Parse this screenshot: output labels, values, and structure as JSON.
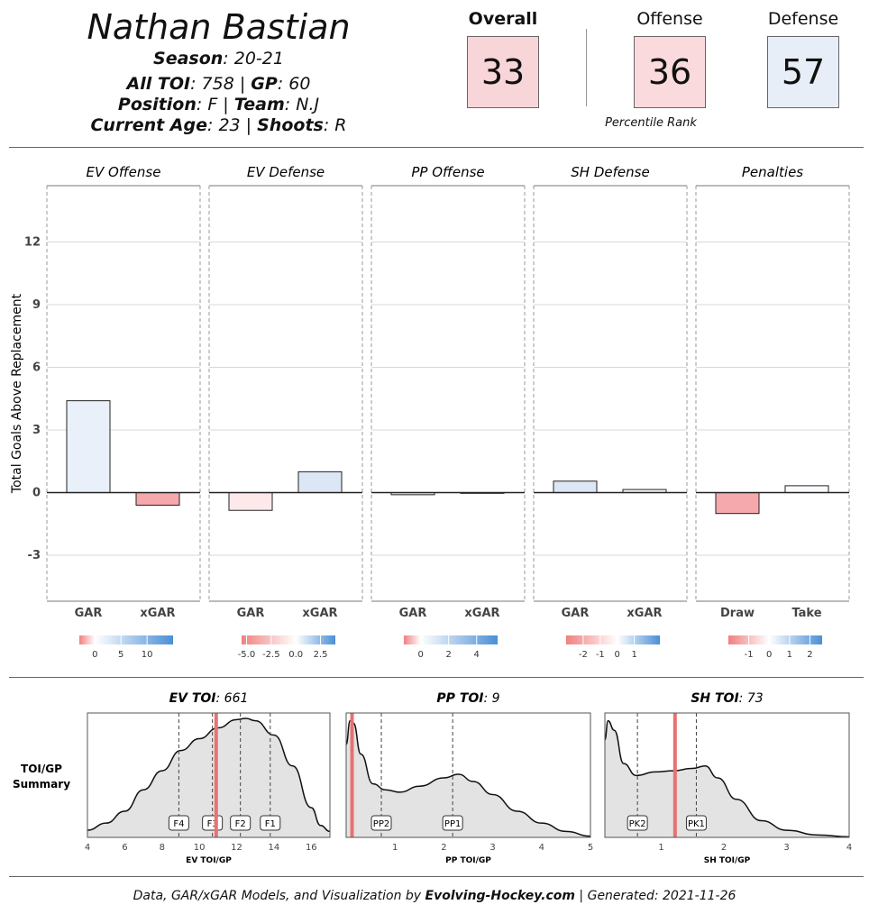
{
  "player": {
    "name": "Nathan Bastian",
    "season_label": "Season",
    "season": "20-21",
    "toi_label": "All TOI",
    "toi": "758",
    "gp_label": "GP",
    "gp": "60",
    "position_label": "Position",
    "position": "F",
    "team_label": "Team",
    "team": "N.J",
    "age_label": "Current Age",
    "age": "23",
    "shoots_label": "Shoots",
    "shoots": "R"
  },
  "scores": {
    "overall_label": "Overall",
    "overall": "33",
    "overall_color": "#f8d5d8",
    "offense_label": "Offense",
    "offense": "36",
    "offense_color": "#fadadd",
    "defense_label": "Defense",
    "defense": "57",
    "defense_color": "#e8eef8",
    "percentile_label": "Percentile Rank"
  },
  "chart_data": [
    {
      "type": "bar",
      "ylabel": "Total Goals Above Replacement",
      "ylim": [
        -5.2,
        14.7
      ],
      "yticks": [
        -3,
        0,
        3,
        6,
        9,
        12
      ],
      "grid": true,
      "panels": [
        {
          "title": "EV Offense",
          "categories": [
            "GAR",
            "xGAR"
          ],
          "values": [
            4.4,
            -0.6
          ],
          "colors": [
            "#e9f0fa",
            "#f5a9ad"
          ],
          "scale": {
            "min": -3,
            "max": 15,
            "ticks": [
              0,
              5,
              10
            ]
          }
        },
        {
          "title": "EV Defense",
          "categories": [
            "GAR",
            "xGAR"
          ],
          "values": [
            -0.85,
            1.0
          ],
          "colors": [
            "#fde8ea",
            "#dce6f5"
          ],
          "scale": {
            "min": -5.5,
            "max": 4,
            "ticks": [
              "-5.0",
              "-2.5",
              "0.0",
              "2.5"
            ],
            "tickvals": [
              -5,
              -2.5,
              0,
              2.5
            ]
          }
        },
        {
          "title": "PP Offense",
          "categories": [
            "GAR",
            "xGAR"
          ],
          "values": [
            -0.1,
            -0.03
          ],
          "colors": [
            "#fdf3f3",
            "#f7f7f7"
          ],
          "scale": {
            "min": -1.2,
            "max": 5.5,
            "ticks": [
              0,
              2,
              4
            ]
          }
        },
        {
          "title": "SH Defense",
          "categories": [
            "GAR",
            "xGAR"
          ],
          "values": [
            0.55,
            0.15
          ],
          "colors": [
            "#dce6f5",
            "#f4f7fc"
          ],
          "scale": {
            "min": -3,
            "max": 2.5,
            "ticks": [
              -2,
              -1,
              0,
              1
            ]
          }
        },
        {
          "title": "Penalties",
          "categories": [
            "Draw",
            "Take"
          ],
          "values": [
            -1.0,
            0.33
          ],
          "colors": [
            "#f5a9ad",
            "#fafbfe"
          ],
          "scale": {
            "min": -2,
            "max": 2.6,
            "ticks": [
              -1,
              0,
              1,
              2
            ]
          }
        }
      ]
    },
    {
      "type": "area",
      "summary_label": "TOI/GP Summary",
      "panels": [
        {
          "title_label": "EV TOI",
          "title_value": "661",
          "xlabel": "EV TOI/GP",
          "xlim": [
            4,
            17
          ],
          "xticks": [
            4,
            6,
            8,
            10,
            12,
            14,
            16
          ],
          "player_value": 10.9,
          "markers": [
            {
              "label": "F4",
              "x": 8.9
            },
            {
              "label": "F3",
              "x": 10.7
            },
            {
              "label": "F2",
              "x": 12.2
            },
            {
              "label": "F1",
              "x": 13.8
            }
          ],
          "density": [
            [
              4,
              0.06
            ],
            [
              5,
              0.12
            ],
            [
              6,
              0.22
            ],
            [
              7,
              0.4
            ],
            [
              8,
              0.56
            ],
            [
              9,
              0.73
            ],
            [
              10,
              0.83
            ],
            [
              11,
              0.92
            ],
            [
              12,
              0.99
            ],
            [
              12.5,
              1.0
            ],
            [
              13,
              0.98
            ],
            [
              14,
              0.86
            ],
            [
              15,
              0.6
            ],
            [
              16,
              0.25
            ],
            [
              16.5,
              0.1
            ],
            [
              17,
              0.05
            ]
          ]
        },
        {
          "title_label": "PP TOI",
          "title_value": "9",
          "xlabel": "PP TOI/GP",
          "xlim": [
            0,
            5
          ],
          "xticks": [
            1,
            2,
            3,
            4,
            5
          ],
          "player_value": 0.12,
          "markers": [
            {
              "label": "PP2",
              "x": 0.72
            },
            {
              "label": "PP1",
              "x": 2.18
            }
          ],
          "density": [
            [
              0,
              0.78
            ],
            [
              0.08,
              0.98
            ],
            [
              0.15,
              0.96
            ],
            [
              0.3,
              0.7
            ],
            [
              0.55,
              0.45
            ],
            [
              0.8,
              0.4
            ],
            [
              1.1,
              0.38
            ],
            [
              1.5,
              0.43
            ],
            [
              2.0,
              0.5
            ],
            [
              2.3,
              0.53
            ],
            [
              2.6,
              0.47
            ],
            [
              3.0,
              0.36
            ],
            [
              3.5,
              0.22
            ],
            [
              4.0,
              0.12
            ],
            [
              4.5,
              0.05
            ],
            [
              5,
              0.01
            ]
          ]
        },
        {
          "title_label": "SH TOI",
          "title_value": "73",
          "xlabel": "SH TOI/GP",
          "xlim": [
            0.1,
            4
          ],
          "xticks": [
            1,
            2,
            3,
            4
          ],
          "player_value": 1.22,
          "markers": [
            {
              "label": "PK2",
              "x": 0.62
            },
            {
              "label": "PK1",
              "x": 1.56
            }
          ],
          "density": [
            [
              0.1,
              0.82
            ],
            [
              0.15,
              0.98
            ],
            [
              0.25,
              0.9
            ],
            [
              0.4,
              0.62
            ],
            [
              0.6,
              0.52
            ],
            [
              0.9,
              0.55
            ],
            [
              1.2,
              0.56
            ],
            [
              1.5,
              0.58
            ],
            [
              1.7,
              0.6
            ],
            [
              1.9,
              0.5
            ],
            [
              2.2,
              0.32
            ],
            [
              2.6,
              0.14
            ],
            [
              3.0,
              0.06
            ],
            [
              3.5,
              0.02
            ],
            [
              4,
              0.005
            ]
          ]
        }
      ]
    }
  ],
  "footer": {
    "prefix": "Data, GAR/xGAR Models, and Visualization by",
    "site": "Evolving-Hockey.com",
    "suffix": "| Generated: 2021-11-26"
  }
}
